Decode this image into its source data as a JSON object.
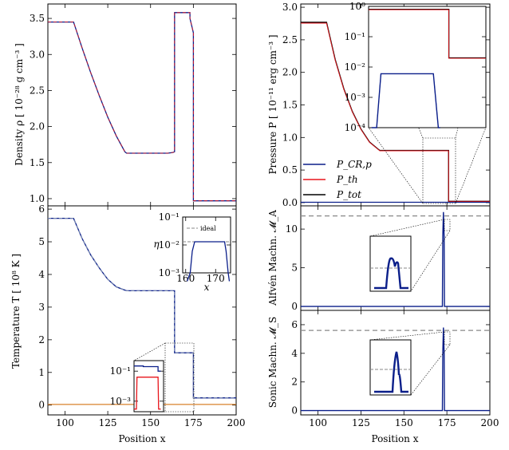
{
  "colors": {
    "cr": "#0b1f8a",
    "th": "#e8151b",
    "tot": "#000000",
    "dash": "#8fa0b8",
    "ref": "#888888",
    "orange": "#d9822b"
  },
  "chart_data": [
    {
      "id": "density",
      "type": "line",
      "xlim": [
        90,
        200
      ],
      "ylim": [
        0.9,
        3.7
      ],
      "xticks": [
        100,
        125,
        150,
        175,
        200
      ],
      "xtick_labels": [
        "",
        "",
        "",
        "",
        ""
      ],
      "yticks": [
        1.0,
        1.5,
        2.0,
        2.5,
        3.0,
        3.5
      ],
      "ytick_labels": [
        "1.0",
        "1.5",
        "2.0",
        "2.5",
        "3.0",
        "3.5"
      ],
      "ylabel": "Density  ρ [ 10⁻²⁸ g cm⁻³ ]",
      "series": [
        {
          "name": "ρ",
          "color_key": "cr",
          "x": [
            90,
            105,
            110,
            115,
            120,
            125,
            130,
            135,
            136,
            160,
            163,
            164,
            164,
            173,
            173,
            175,
            175,
            200
          ],
          "y": [
            3.45,
            3.45,
            3.09,
            2.75,
            2.43,
            2.13,
            1.87,
            1.65,
            1.63,
            1.63,
            1.64,
            1.65,
            3.58,
            3.58,
            3.5,
            3.3,
            0.97,
            0.97
          ]
        }
      ]
    },
    {
      "id": "temperature",
      "type": "line",
      "xlim": [
        90,
        200
      ],
      "ylim": [
        -0.3,
        6.1
      ],
      "xticks": [
        100,
        125,
        150,
        175,
        200
      ],
      "xtick_labels": [
        "100",
        "125",
        "150",
        "175",
        "200"
      ],
      "yticks": [
        0,
        1,
        2,
        3,
        4,
        5,
        6
      ],
      "ytick_labels": [
        "0",
        "1",
        "2",
        "3",
        "4",
        "5",
        "6"
      ],
      "xlabel": "Position  x",
      "ylabel": "Temperature  T [ 10⁸ K ]",
      "series": [
        {
          "name": "T",
          "color_key": "cr",
          "x": [
            90,
            105,
            110,
            115,
            120,
            125,
            130,
            135,
            136,
            164,
            164,
            173,
            173,
            175,
            175,
            200
          ],
          "y": [
            5.72,
            5.72,
            5.1,
            4.6,
            4.2,
            3.85,
            3.62,
            3.52,
            3.5,
            3.5,
            1.6,
            1.6,
            1.6,
            1.6,
            0.22,
            0.22
          ]
        },
        {
          "name": "T_low",
          "color_key": "orange",
          "x": [
            90,
            200
          ],
          "y": [
            0.02,
            0.02
          ]
        }
      ],
      "inset_top": {
        "xlim": [
          159,
          175
        ],
        "ylim_log": [
          -3,
          -1
        ],
        "xticks": [
          160,
          170
        ],
        "xtick_labels": [
          "160",
          "170"
        ],
        "yticks_log": [
          -3,
          -2,
          -1
        ],
        "ytick_labels": [
          "10⁻³",
          "10⁻²",
          "10⁻¹"
        ],
        "xlabel": "x",
        "ylabel": "η",
        "legend": "ideal",
        "series": [
          {
            "name": "η",
            "color_key": "cr",
            "x": [
              160.5,
              161.5,
              162.2,
              163.0,
              173.0,
              173.5,
              174.2,
              174.6
            ],
            "y": [
              0.0005,
              0.001,
              0.006,
              0.013,
              0.013,
              0.006,
              0.001,
              0.0005
            ]
          },
          {
            "name": "ideal",
            "color_key": "ref",
            "x": [
              159,
              175
            ],
            "y": [
              0.013,
              0.013
            ]
          }
        ]
      },
      "inset_bottom": {
        "xlim": [
          159,
          175
        ],
        "ylim_log": [
          -3.7,
          -0.3
        ],
        "yticks_log": [
          -3,
          -1
        ],
        "ytick_labels": [
          "10⁻³",
          "10⁻¹"
        ],
        "series": [
          {
            "name": "blue",
            "color_key": "cr",
            "x": [
              159,
              164,
              164,
              172,
              172,
              173.5
            ],
            "y": [
              0.22,
              0.22,
              0.2,
              0.2,
              0.1,
              0.1
            ]
          },
          {
            "name": "red",
            "color_key": "th",
            "x": [
              159,
              160.3,
              160.6,
              172.0,
              172.3,
              173.5
            ],
            "y": [
              0.0003,
              0.0003,
              0.04,
              0.04,
              0.0003,
              0.0003
            ]
          }
        ]
      }
    },
    {
      "id": "pressure",
      "type": "line",
      "xlim": [
        90,
        200
      ],
      "ylim": [
        -0.05,
        3.05
      ],
      "xticks": [
        100,
        125,
        150,
        175,
        200
      ],
      "xtick_labels": [
        "",
        "",
        "",
        "",
        ""
      ],
      "yticks": [
        0.0,
        0.5,
        1.0,
        1.5,
        2.0,
        2.5,
        3.0
      ],
      "ytick_labels": [
        "0.0",
        "0.5",
        "1.0",
        "1.5",
        "2.0",
        "2.5",
        "3.0"
      ],
      "ylabel": "Pressure  P [ 10⁻¹¹ erg cm⁻³ ]",
      "legend": [
        "P_CR,p",
        "P_th",
        "P_tot"
      ],
      "series": [
        {
          "name": "P_tot",
          "color_key": "tot",
          "x": [
            90,
            105,
            110,
            115,
            120,
            125,
            130,
            135,
            136,
            160,
            163,
            163.5,
            173,
            176,
            176,
            200
          ],
          "y": [
            2.77,
            2.77,
            2.2,
            1.75,
            1.4,
            1.13,
            0.93,
            0.82,
            0.8,
            0.8,
            0.8,
            0.8,
            0.8,
            0.8,
            0.02,
            0.02
          ]
        },
        {
          "name": "P_CR,p",
          "color_key": "cr",
          "x": [
            90,
            200
          ],
          "y": [
            0.005,
            0.005
          ]
        }
      ],
      "inset": {
        "xlim": [
          159,
          178
        ],
        "ylim_log": [
          -4,
          0
        ],
        "yticks_log": [
          -4,
          -3,
          -2,
          -1,
          0
        ],
        "ytick_labels": [
          "10⁻⁴",
          "10⁻³",
          "10⁻²",
          "10⁻¹",
          "10⁰"
        ],
        "series": [
          {
            "name": "P_tot",
            "color_key": "tot",
            "x": [
              159,
              172,
              172,
              178
            ],
            "y": [
              0.8,
              0.8,
              0.02,
              0.02
            ]
          },
          {
            "name": "P_CR,p",
            "color_key": "cr",
            "x": [
              159.5,
              160.3,
              161.0,
              169.5,
              170.3,
              170.6
            ],
            "y": [
              0.0001,
              0.0001,
              0.006,
              0.006,
              0.0001,
              0.0001
            ]
          }
        ]
      }
    },
    {
      "id": "alfven",
      "type": "line",
      "xlim": [
        90,
        200
      ],
      "ylim": [
        -0.5,
        13
      ],
      "xticks": [
        100,
        125,
        150,
        175,
        200
      ],
      "xtick_labels": [
        "",
        "",
        "",
        "",
        ""
      ],
      "yticks": [
        0,
        5,
        10
      ],
      "ytick_labels": [
        "0",
        "5",
        "10"
      ],
      "ylabel": "Alfvén Machn.  𝓜_A",
      "ref_value": 11.7,
      "series": [
        {
          "name": "M_A",
          "color_key": "cr",
          "x": [
            90,
            172.4,
            172.6,
            173.0,
            173.4,
            173.6,
            200
          ],
          "y": [
            0,
            0,
            9,
            12.2,
            9,
            0,
            0
          ]
        }
      ]
    },
    {
      "id": "sonic",
      "type": "line",
      "xlim": [
        90,
        200
      ],
      "ylim": [
        -0.3,
        7
      ],
      "xticks": [
        100,
        125,
        150,
        175,
        200
      ],
      "xtick_labels": [
        "100",
        "125",
        "150",
        "175",
        "200"
      ],
      "yticks": [
        0,
        2,
        4,
        6
      ],
      "ytick_labels": [
        "0",
        "2",
        "4",
        "6"
      ],
      "xlabel": "Position  x",
      "ylabel": "Sonic Machn.  𝓜_S",
      "ref_value": 5.6,
      "series": [
        {
          "name": "M_S",
          "color_key": "cr",
          "x": [
            90,
            172.4,
            172.6,
            173.0,
            173.4,
            173.6,
            200
          ],
          "y": [
            0,
            0,
            4,
            5.8,
            4,
            0,
            0
          ]
        }
      ]
    }
  ]
}
